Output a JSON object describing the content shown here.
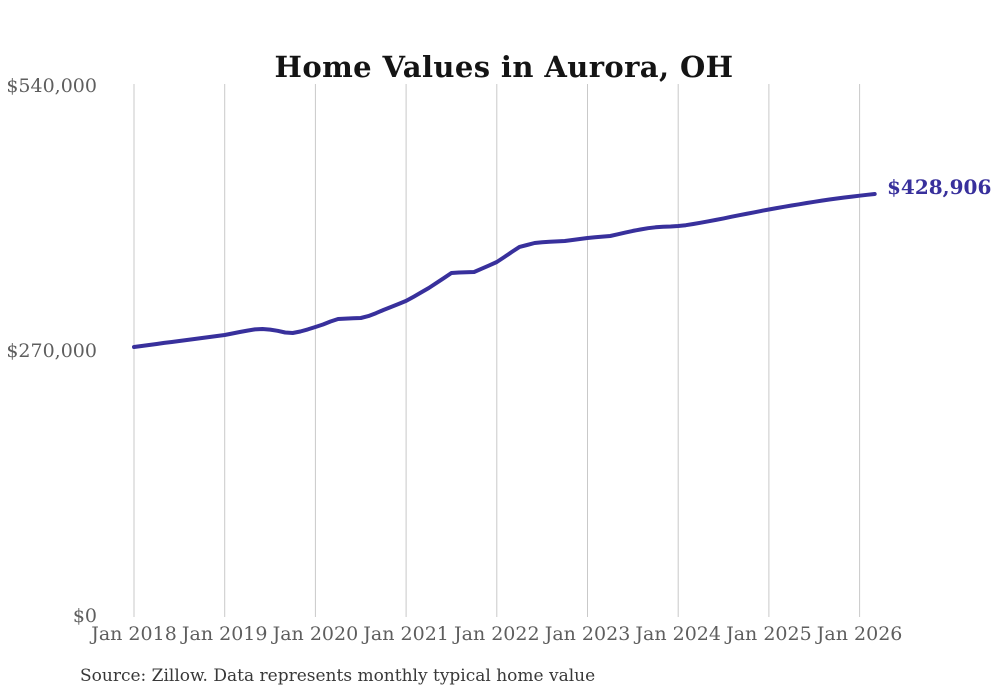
{
  "title": "Home Values in Aurora, OH",
  "end_label": "$428,906",
  "source_note": "Source: Zillow. Data represents monthly typical home value",
  "colors": {
    "line": "#38309c",
    "grid": "#c9c9c9",
    "axis_text": "#5e5e5e",
    "title_text": "#141414",
    "source_text": "#383838"
  },
  "chart_data": {
    "type": "line",
    "title": "Home Values in Aurora, OH",
    "xlabel": "",
    "ylabel": "",
    "frequency": "monthly",
    "x_start": "Jan 2018",
    "x_end": "Mar 2026",
    "x_tick_labels": [
      "Jan 2018",
      "Jan 2019",
      "Jan 2020",
      "Jan 2021",
      "Jan 2022",
      "Jan 2023",
      "Jan 2024",
      "Jan 2025",
      "Jan 2026"
    ],
    "x_tick_month_indices": [
      0,
      12,
      24,
      36,
      48,
      60,
      72,
      84,
      96
    ],
    "y_ticks": [
      0,
      270000,
      540000
    ],
    "y_tick_labels": [
      "$0",
      "$270,000",
      "$540,000"
    ],
    "ylim": [
      0,
      540000
    ],
    "grid": "vertical-only",
    "legend": "none",
    "final_value": 428906,
    "final_value_label": "$428,906",
    "series": [
      {
        "name": "Monthly typical home value",
        "values": [
          273100,
          274100,
          275100,
          276100,
          277200,
          278200,
          279200,
          280200,
          281200,
          282200,
          283200,
          284300,
          285300,
          286800,
          288300,
          289800,
          291000,
          291400,
          290800,
          289600,
          287800,
          287300,
          288800,
          291000,
          293400,
          296000,
          299000,
          301600,
          302000,
          302300,
          302600,
          304500,
          307500,
          310800,
          313800,
          316900,
          320000,
          324300,
          328700,
          333200,
          338200,
          343300,
          348500,
          349000,
          349200,
          349500,
          352800,
          356200,
          359700,
          364800,
          369900,
          375000,
          377000,
          379000,
          379700,
          380200,
          380700,
          381100,
          382100,
          383100,
          384100,
          384800,
          385500,
          386200,
          387900,
          389600,
          391300,
          392800,
          394100,
          395000,
          395500,
          395800,
          396300,
          397200,
          398400,
          399700,
          401100,
          402600,
          404100,
          405700,
          407200,
          408700,
          410200,
          411700,
          413200,
          414600,
          415900,
          417200,
          418500,
          419800,
          421000,
          422200,
          423300,
          424400,
          425400,
          426300,
          427200,
          428100,
          428906
        ]
      }
    ]
  }
}
